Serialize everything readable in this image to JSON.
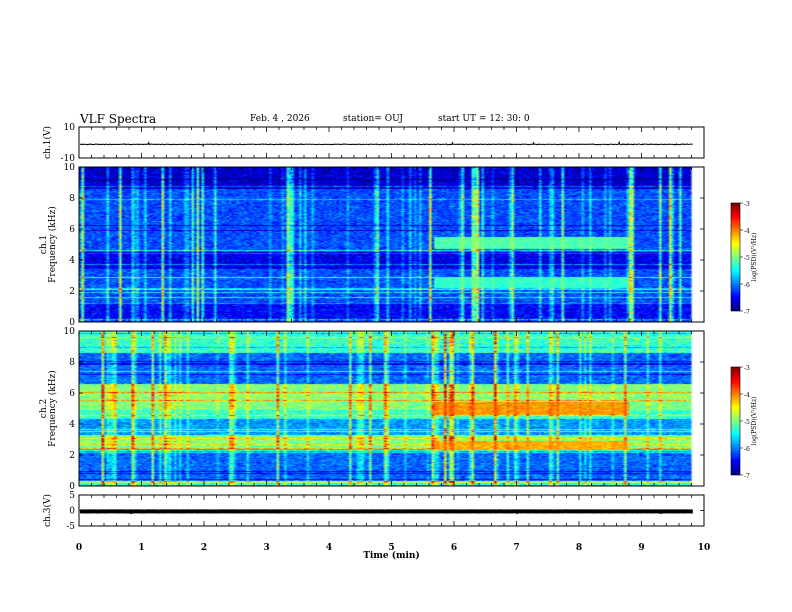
{
  "header": {
    "title": "VLF Spectra",
    "date": "Feb. 4 , 2026",
    "station": "station= OUJ",
    "start": "start UT =  12: 30: 0"
  },
  "chart_data": [
    {
      "type": "line",
      "ylabel": "ch.1(V)",
      "ylim": [
        -10,
        10
      ],
      "yticks": [
        "10",
        "-10"
      ],
      "xlim": [
        0,
        10
      ],
      "series": [
        {
          "values": []
        }
      ],
      "description_level": -1.2,
      "color": "#000000"
    },
    {
      "type": "heatmap",
      "ylabel": "ch.1\nFrequency (kHz)",
      "ylim": [
        0,
        10
      ],
      "yticks": [
        "0",
        "2",
        "4",
        "6",
        "8",
        "10"
      ],
      "xlim": [
        0,
        10
      ],
      "colorbar": {
        "label": "log(PSD)(V²/Hz)",
        "range": [
          -7,
          -3
        ],
        "ticks": [
          "-3",
          "-4",
          "-5",
          "-6",
          "-7"
        ]
      },
      "base_level": -6.2,
      "emission_bands": [
        {
          "t_start": 5.7,
          "t_end": 8.8,
          "f_low": 4.7,
          "f_high": 5.5,
          "level": -5.2
        },
        {
          "t_start": 5.7,
          "t_end": 8.8,
          "f_low": 2.2,
          "f_high": 2.9,
          "level": -5.3
        }
      ]
    },
    {
      "type": "heatmap",
      "ylabel": "ch.2\nFrequency (kHz)",
      "ylim": [
        0,
        10
      ],
      "yticks": [
        "0",
        "2",
        "4",
        "6",
        "8",
        "10"
      ],
      "xlim": [
        0,
        10
      ],
      "colorbar": {
        "label": "log(PSD)(V²/Hz)",
        "range": [
          -7,
          -3
        ],
        "ticks": [
          "-3",
          "-4",
          "-5",
          "-6",
          "-7"
        ]
      },
      "base_level": -5.3,
      "emission_bands": [
        {
          "t_start": 5.7,
          "t_end": 8.8,
          "f_low": 4.6,
          "f_high": 5.4,
          "level": -4.1
        },
        {
          "t_start": 5.7,
          "t_end": 8.8,
          "f_low": 2.3,
          "f_high": 2.9,
          "level": -4.2
        }
      ]
    },
    {
      "type": "line",
      "ylabel": "ch.3(V)",
      "ylim": [
        -5,
        5
      ],
      "yticks": [
        "5",
        "0",
        "-5"
      ],
      "xlim": [
        0,
        10
      ],
      "series": [
        {
          "values": []
        }
      ],
      "description_level": -0.3,
      "color": "#000000"
    }
  ],
  "xaxis": {
    "label": "Time (min)",
    "ticks": [
      "0",
      "1",
      "2",
      "3",
      "4",
      "5",
      "6",
      "7",
      "8",
      "9",
      "10"
    ],
    "range": [
      0,
      10
    ]
  }
}
